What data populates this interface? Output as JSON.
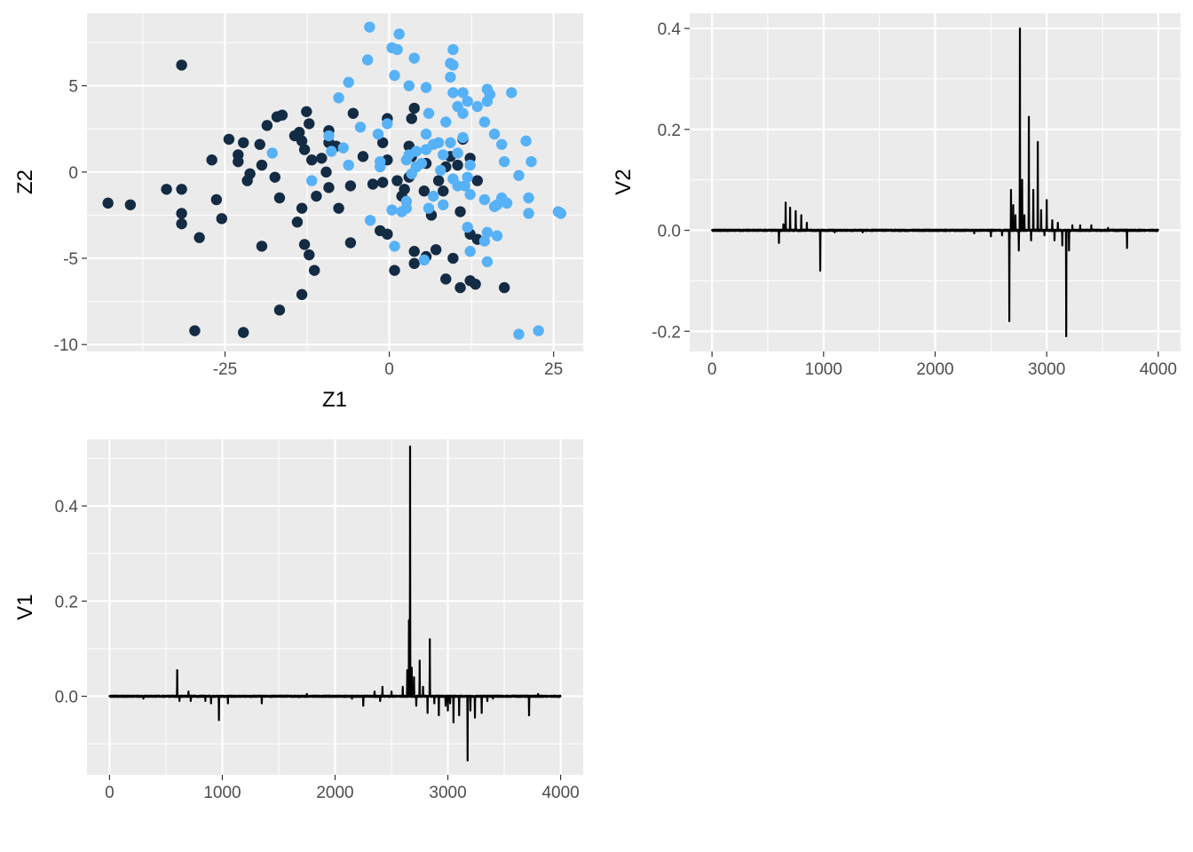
{
  "chart_data": [
    {
      "type": "scatter",
      "xlabel": "Z1",
      "ylabel": "Z2",
      "xlim": [
        -46,
        29.5
      ],
      "ylim": [
        -10.4,
        9.2
      ],
      "x_ticks": [
        -25,
        0,
        25
      ],
      "x_tick_labels": [
        "-25",
        "0",
        "25"
      ],
      "y_ticks": [
        -10,
        -5,
        0,
        5
      ],
      "y_tick_labels": [
        "-10",
        "-5",
        "0",
        "5"
      ],
      "grid": true,
      "series": [
        {
          "color": "#132b43",
          "points": [
            [
              -31.6,
              6.2
            ],
            [
              -42.8,
              -1.8
            ],
            [
              -39.4,
              -1.9
            ],
            [
              -33.9,
              -1.0
            ],
            [
              -31.6,
              -1.0
            ],
            [
              -31.6,
              -2.4
            ],
            [
              -31.6,
              -3.0
            ],
            [
              -28.9,
              -3.8
            ],
            [
              -26.3,
              -1.6
            ],
            [
              -27.0,
              0.7
            ],
            [
              -24.4,
              1.9
            ],
            [
              -22.2,
              1.7
            ],
            [
              -23.0,
              1.0
            ],
            [
              -23.0,
              0.6
            ],
            [
              -21.6,
              -0.5
            ],
            [
              -21.2,
              -0.1
            ],
            [
              -19.7,
              1.6
            ],
            [
              -19.4,
              0.4
            ],
            [
              -18.6,
              2.7
            ],
            [
              -17.1,
              3.2
            ],
            [
              -16.3,
              3.3
            ],
            [
              -17.4,
              -0.3
            ],
            [
              -16.7,
              -1.5
            ],
            [
              -14.4,
              2.1
            ],
            [
              -13.7,
              2.3
            ],
            [
              -13.3,
              1.8
            ],
            [
              -12.6,
              3.5
            ],
            [
              -12.2,
              2.8
            ],
            [
              -12.9,
              1.3
            ],
            [
              -11.8,
              0.7
            ],
            [
              -10.3,
              0.8
            ],
            [
              -9.6,
              0.0
            ],
            [
              -9.2,
              1.7
            ],
            [
              -8.1,
              1.5
            ],
            [
              -9.2,
              2.4
            ],
            [
              -11.1,
              -1.4
            ],
            [
              -13.3,
              -2.1
            ],
            [
              -14.0,
              -2.9
            ],
            [
              -19.4,
              -4.3
            ],
            [
              -12.9,
              -4.2
            ],
            [
              -12.2,
              -4.8
            ],
            [
              -11.4,
              -5.7
            ],
            [
              -13.3,
              -7.1
            ],
            [
              -16.7,
              -8.0
            ],
            [
              -22.2,
              -9.3
            ],
            [
              -29.6,
              -9.2
            ],
            [
              -25.5,
              -2.7
            ],
            [
              -9.2,
              -0.9
            ],
            [
              -7.7,
              -2.1
            ],
            [
              -5.9,
              -0.8
            ],
            [
              -5.9,
              -4.1
            ],
            [
              -5.5,
              3.4
            ],
            [
              -4.0,
              0.9
            ],
            [
              -2.5,
              -0.7
            ],
            [
              -1.4,
              -3.4
            ],
            [
              -1.0,
              -0.6
            ],
            [
              -0.3,
              0.7
            ],
            [
              -0.3,
              3.1
            ],
            [
              -1.0,
              1.7
            ],
            [
              1.2,
              -0.5
            ],
            [
              1.9,
              -1.4
            ],
            [
              2.3,
              -1.0
            ],
            [
              3.0,
              -0.3
            ],
            [
              3.4,
              0.9
            ],
            [
              3.0,
              1.5
            ],
            [
              3.4,
              3.1
            ],
            [
              3.8,
              3.7
            ],
            [
              4.1,
              0.3
            ],
            [
              5.3,
              -1.1
            ],
            [
              5.6,
              0.5
            ],
            [
              6.4,
              -2.5
            ],
            [
              7.5,
              -0.5
            ],
            [
              8.2,
              -1.1
            ],
            [
              8.6,
              0.3
            ],
            [
              9.3,
              0.9
            ],
            [
              10.4,
              0.4
            ],
            [
              11.2,
              1.9
            ],
            [
              12.3,
              0.8
            ],
            [
              13.4,
              -0.5
            ],
            [
              10.8,
              -2.3
            ],
            [
              12.3,
              -3.6
            ],
            [
              13.4,
              -3.9
            ],
            [
              12.3,
              -6.3
            ],
            [
              13.1,
              -6.5
            ],
            [
              10.8,
              -6.7
            ],
            [
              17.5,
              -6.7
            ],
            [
              9.7,
              -5.0
            ],
            [
              8.6,
              -6.2
            ],
            [
              7.1,
              -4.5
            ],
            [
              5.6,
              -4.9
            ],
            [
              3.8,
              -5.3
            ],
            [
              3.8,
              -4.6
            ],
            [
              0.8,
              -5.7
            ],
            [
              -0.3,
              -3.6
            ]
          ]
        },
        {
          "color": "#56b1f7",
          "points": [
            [
              -3.0,
              8.4
            ],
            [
              1.5,
              8.0
            ],
            [
              -3.3,
              6.5
            ],
            [
              0.4,
              7.2
            ],
            [
              1.2,
              7.1
            ],
            [
              3.8,
              6.6
            ],
            [
              9.7,
              7.1
            ],
            [
              9.3,
              6.3
            ],
            [
              9.7,
              6.2
            ],
            [
              0.8,
              5.6
            ],
            [
              3.0,
              5.0
            ],
            [
              5.6,
              4.9
            ],
            [
              9.3,
              5.5
            ],
            [
              9.7,
              4.6
            ],
            [
              -6.2,
              5.2
            ],
            [
              -7.7,
              4.3
            ],
            [
              11.2,
              4.6
            ],
            [
              11.9,
              4.1
            ],
            [
              14.9,
              4.8
            ],
            [
              15.3,
              4.5
            ],
            [
              18.6,
              4.6
            ],
            [
              13.4,
              3.8
            ],
            [
              14.9,
              4.1
            ],
            [
              10.4,
              3.8
            ],
            [
              11.2,
              3.4
            ],
            [
              6.0,
              3.4
            ],
            [
              8.6,
              2.9
            ],
            [
              14.5,
              2.9
            ],
            [
              16.0,
              2.2
            ],
            [
              17.1,
              1.6
            ],
            [
              20.8,
              1.8
            ],
            [
              21.6,
              0.6
            ],
            [
              17.5,
              0.6
            ],
            [
              19.7,
              -0.2
            ],
            [
              21.2,
              -1.5
            ],
            [
              21.2,
              -2.4
            ],
            [
              17.9,
              -1.8
            ],
            [
              17.1,
              -1.5
            ],
            [
              16.4,
              -1.9
            ],
            [
              16.0,
              -2.0
            ],
            [
              14.5,
              -1.6
            ],
            [
              16.4,
              -3.7
            ],
            [
              14.9,
              -3.5
            ],
            [
              14.5,
              -4.0
            ],
            [
              14.9,
              -5.2
            ],
            [
              12.3,
              -4.6
            ],
            [
              11.9,
              -3.2
            ],
            [
              12.3,
              -1.3
            ],
            [
              11.5,
              -0.8
            ],
            [
              11.9,
              -0.3
            ],
            [
              12.3,
              0.4
            ],
            [
              11.2,
              2.0
            ],
            [
              10.4,
              1.1
            ],
            [
              9.3,
              1.7
            ],
            [
              8.2,
              1.0
            ],
            [
              7.5,
              1.7
            ],
            [
              6.7,
              1.6
            ],
            [
              5.6,
              2.2
            ],
            [
              5.6,
              1.3
            ],
            [
              4.1,
              1.2
            ],
            [
              4.9,
              0.5
            ],
            [
              4.1,
              0.3
            ],
            [
              3.4,
              -0.1
            ],
            [
              3.0,
              1.0
            ],
            [
              2.6,
              0.7
            ],
            [
              2.6,
              -1.7
            ],
            [
              2.6,
              -2.1
            ],
            [
              1.9,
              -2.3
            ],
            [
              0.4,
              -2.2
            ],
            [
              0.8,
              -4.3
            ],
            [
              5.3,
              -5.1
            ],
            [
              8.2,
              -1.9
            ],
            [
              9.7,
              -0.4
            ],
            [
              10.4,
              -0.8
            ],
            [
              7.8,
              0.1
            ],
            [
              6.7,
              -1.4
            ],
            [
              6.0,
              -2.1
            ],
            [
              -2.9,
              -2.8
            ],
            [
              -1.4,
              0.3
            ],
            [
              -1.4,
              0.6
            ],
            [
              -0.3,
              2.8
            ],
            [
              -1.7,
              2.2
            ],
            [
              -4.4,
              2.6
            ],
            [
              -6.2,
              0.4
            ],
            [
              -7.0,
              1.4
            ],
            [
              -8.8,
              1.2
            ],
            [
              -11.8,
              -0.5
            ],
            [
              -17.8,
              1.1
            ],
            [
              -9.2,
              2.1
            ],
            [
              19.7,
              -9.4
            ],
            [
              22.7,
              -9.2
            ],
            [
              25.7,
              -2.3
            ],
            [
              26.1,
              -2.4
            ]
          ]
        }
      ]
    },
    {
      "type": "line",
      "xlabel": "",
      "ylabel": "V2",
      "xlim": [
        -200,
        4200
      ],
      "ylim": [
        -0.24,
        0.43
      ],
      "x_ticks": [
        0,
        1000,
        2000,
        3000,
        4000
      ],
      "x_tick_labels": [
        "0",
        "1000",
        "2000",
        "3000",
        "4000"
      ],
      "y_ticks": [
        -0.2,
        0.0,
        0.2,
        0.4
      ],
      "y_tick_labels": [
        "-0.2",
        "0.0",
        "0.2",
        "0.4"
      ],
      "grid": true,
      "color": "#000000",
      "n_points": 4000,
      "spikes": [
        [
          600,
          -0.025
        ],
        [
          640,
          0.012
        ],
        [
          660,
          0.055
        ],
        [
          700,
          0.045
        ],
        [
          750,
          0.038
        ],
        [
          800,
          0.03
        ],
        [
          850,
          0.015
        ],
        [
          970,
          -0.08
        ],
        [
          1100,
          -0.004
        ],
        [
          1350,
          -0.004
        ],
        [
          2350,
          -0.006
        ],
        [
          2500,
          -0.012
        ],
        [
          2600,
          -0.01
        ],
        [
          2665,
          -0.18
        ],
        [
          2680,
          0.08
        ],
        [
          2700,
          0.05
        ],
        [
          2720,
          0.03
        ],
        [
          2750,
          -0.04
        ],
        [
          2760,
          0.4
        ],
        [
          2780,
          0.1
        ],
        [
          2800,
          0.03
        ],
        [
          2840,
          0.225
        ],
        [
          2860,
          -0.02
        ],
        [
          2880,
          0.08
        ],
        [
          2920,
          0.175
        ],
        [
          2950,
          0.04
        ],
        [
          2980,
          -0.01
        ],
        [
          3000,
          0.06
        ],
        [
          3050,
          0.02
        ],
        [
          3070,
          -0.02
        ],
        [
          3100,
          0.015
        ],
        [
          3140,
          -0.03
        ],
        [
          3175,
          -0.21
        ],
        [
          3200,
          -0.04
        ],
        [
          3230,
          0.01
        ],
        [
          3300,
          0.01
        ],
        [
          3400,
          0.01
        ],
        [
          3550,
          0.005
        ],
        [
          3720,
          -0.035
        ]
      ]
    },
    {
      "type": "line",
      "xlabel": "",
      "ylabel": "V1",
      "xlim": [
        -200,
        4200
      ],
      "ylim": [
        -0.165,
        0.54
      ],
      "x_ticks": [
        0,
        1000,
        2000,
        3000,
        4000
      ],
      "x_tick_labels": [
        "0",
        "1000",
        "2000",
        "3000",
        "4000"
      ],
      "y_ticks": [
        0.0,
        0.2,
        0.4
      ],
      "y_tick_labels": [
        "0.0",
        "0.2",
        "0.4"
      ],
      "grid": true,
      "color": "#000000",
      "n_points": 4000,
      "spikes": [
        [
          300,
          -0.005
        ],
        [
          600,
          0.055
        ],
        [
          620,
          -0.01
        ],
        [
          700,
          0.01
        ],
        [
          720,
          -0.01
        ],
        [
          850,
          -0.01
        ],
        [
          900,
          -0.015
        ],
        [
          970,
          -0.05
        ],
        [
          1050,
          -0.015
        ],
        [
          1350,
          -0.015
        ],
        [
          1750,
          0.005
        ],
        [
          2150,
          -0.005
        ],
        [
          2250,
          -0.02
        ],
        [
          2350,
          0.01
        ],
        [
          2400,
          -0.01
        ],
        [
          2420,
          0.02
        ],
        [
          2500,
          0.01
        ],
        [
          2600,
          0.02
        ],
        [
          2640,
          0.055
        ],
        [
          2655,
          0.16
        ],
        [
          2665,
          0.525
        ],
        [
          2680,
          0.06
        ],
        [
          2700,
          0.04
        ],
        [
          2720,
          -0.02
        ],
        [
          2750,
          0.075
        ],
        [
          2780,
          0.02
        ],
        [
          2820,
          -0.035
        ],
        [
          2840,
          0.12
        ],
        [
          2880,
          -0.015
        ],
        [
          2920,
          -0.04
        ],
        [
          2980,
          -0.02
        ],
        [
          3000,
          -0.03
        ],
        [
          3020,
          -0.015
        ],
        [
          3050,
          -0.055
        ],
        [
          3100,
          -0.04
        ],
        [
          3175,
          -0.135
        ],
        [
          3200,
          -0.03
        ],
        [
          3240,
          -0.045
        ],
        [
          3300,
          -0.035
        ],
        [
          3350,
          -0.01
        ],
        [
          3400,
          -0.005
        ],
        [
          3720,
          -0.04
        ],
        [
          3800,
          0.005
        ]
      ]
    }
  ]
}
